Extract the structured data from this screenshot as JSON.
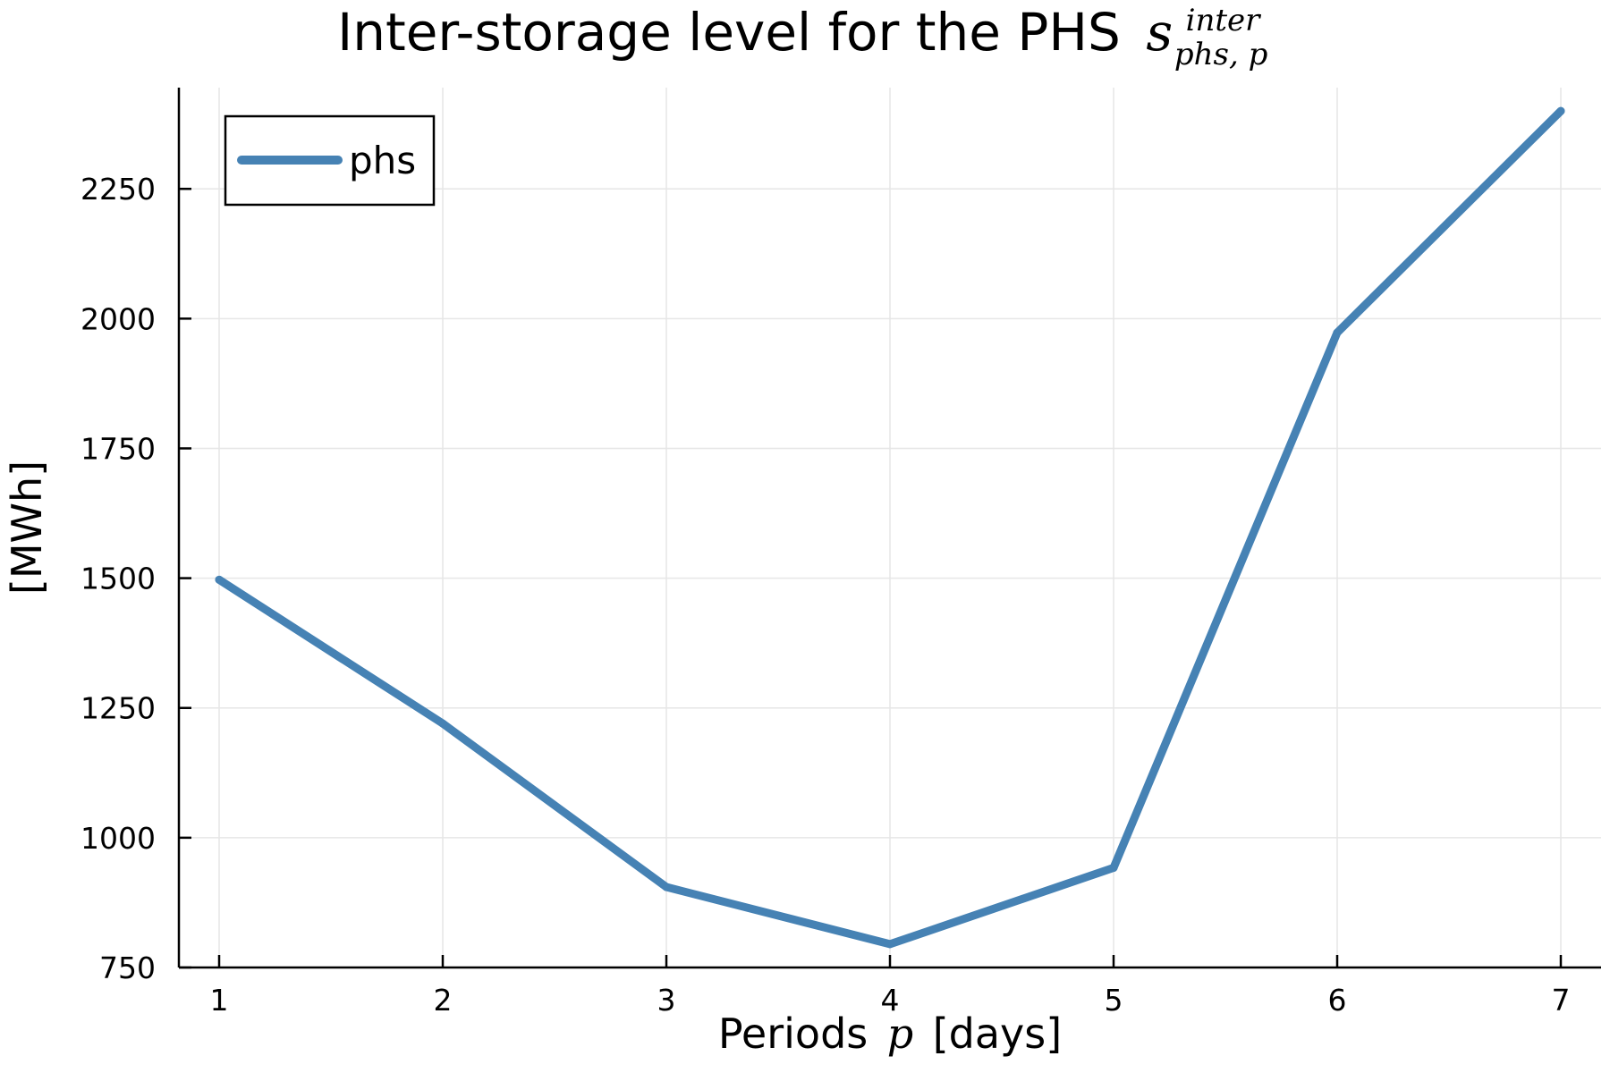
{
  "chart_data": {
    "type": "line",
    "title": {
      "text": "Inter-storage level for the PHS",
      "math_base": "s",
      "math_sup": "inter",
      "math_sub": "phs, p"
    },
    "xlabel": {
      "prefix": "Periods",
      "math": "p",
      "suffix": "[days]"
    },
    "ylabel": "[MWh]",
    "x": [
      1,
      2,
      3,
      4,
      5,
      6,
      7
    ],
    "xticks": [
      "1",
      "2",
      "3",
      "4",
      "5",
      "6",
      "7"
    ],
    "yticks": [
      "750",
      "1000",
      "1250",
      "1500",
      "1750",
      "2000",
      "2250"
    ],
    "xlim": [
      0.82,
      7.18
    ],
    "ylim": [
      750,
      2445
    ],
    "grid": true,
    "legend_position": "top-left",
    "series": [
      {
        "name": "phs",
        "color": "#4682b4",
        "values": [
          1497,
          1220,
          905,
          795,
          942,
          1973,
          2400
        ]
      }
    ]
  }
}
